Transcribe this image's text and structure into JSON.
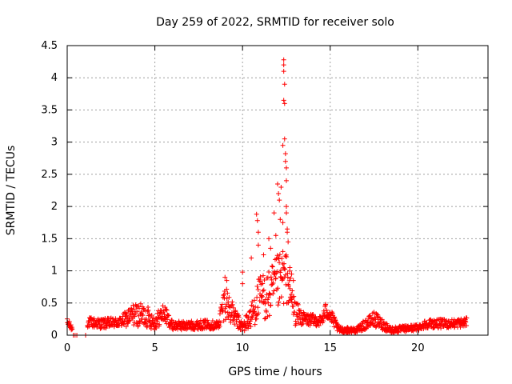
{
  "chart_data": {
    "type": "scatter",
    "title": "Day 259 of 2022, SRMTID for receiver solo",
    "xlabel": "GPS time / hours",
    "ylabel": "SRMTID / TECUs",
    "xlim": [
      0,
      24
    ],
    "ylim": [
      0,
      4.5
    ],
    "xticks": [
      0,
      5,
      10,
      15,
      20
    ],
    "yticks": [
      0,
      0.5,
      1,
      1.5,
      2,
      2.5,
      3,
      3.5,
      4,
      4.5
    ],
    "ytick_labels": [
      "0",
      "0.5",
      "1",
      "1.5",
      "2",
      "2.5",
      "3",
      "3.5",
      "4",
      "4.5"
    ],
    "grid": true,
    "marker": "+",
    "color": "#ff0000",
    "series": [
      {
        "name": "SRMTID",
        "envelope": [
          {
            "x": 0.0,
            "base": 0.2,
            "spread": 0.06
          },
          {
            "x": 0.3,
            "base": 0.1,
            "spread": 0.05
          },
          {
            "x": 1.2,
            "base": 0.2,
            "spread": 0.08
          },
          {
            "x": 2.0,
            "base": 0.18,
            "spread": 0.08
          },
          {
            "x": 3.0,
            "base": 0.2,
            "spread": 0.08
          },
          {
            "x": 3.8,
            "base": 0.32,
            "spread": 0.18
          },
          {
            "x": 4.5,
            "base": 0.3,
            "spread": 0.18
          },
          {
            "x": 5.0,
            "base": 0.2,
            "spread": 0.12
          },
          {
            "x": 5.5,
            "base": 0.35,
            "spread": 0.15
          },
          {
            "x": 6.0,
            "base": 0.15,
            "spread": 0.07
          },
          {
            "x": 7.0,
            "base": 0.15,
            "spread": 0.07
          },
          {
            "x": 8.0,
            "base": 0.17,
            "spread": 0.07
          },
          {
            "x": 8.6,
            "base": 0.15,
            "spread": 0.07
          },
          {
            "x": 9.0,
            "base": 0.55,
            "spread": 0.3
          },
          {
            "x": 9.5,
            "base": 0.3,
            "spread": 0.15
          },
          {
            "x": 10.0,
            "base": 0.12,
            "spread": 0.08
          },
          {
            "x": 10.5,
            "base": 0.3,
            "spread": 0.2
          },
          {
            "x": 11.0,
            "base": 0.6,
            "spread": 0.35
          },
          {
            "x": 11.5,
            "base": 0.6,
            "spread": 0.4
          },
          {
            "x": 12.0,
            "base": 0.8,
            "spread": 0.45
          },
          {
            "x": 12.5,
            "base": 0.9,
            "spread": 0.4
          },
          {
            "x": 13.0,
            "base": 0.35,
            "spread": 0.2
          },
          {
            "x": 13.5,
            "base": 0.25,
            "spread": 0.1
          },
          {
            "x": 14.5,
            "base": 0.22,
            "spread": 0.08
          },
          {
            "x": 14.8,
            "base": 0.4,
            "spread": 0.15
          },
          {
            "x": 15.5,
            "base": 0.08,
            "spread": 0.05
          },
          {
            "x": 16.5,
            "base": 0.08,
            "spread": 0.04
          },
          {
            "x": 17.5,
            "base": 0.25,
            "spread": 0.12
          },
          {
            "x": 18.5,
            "base": 0.08,
            "spread": 0.05
          },
          {
            "x": 20.0,
            "base": 0.12,
            "spread": 0.05
          },
          {
            "x": 20.5,
            "base": 0.18,
            "spread": 0.07
          },
          {
            "x": 22.0,
            "base": 0.18,
            "spread": 0.07
          },
          {
            "x": 22.8,
            "base": 0.2,
            "spread": 0.07
          }
        ],
        "highlights": [
          {
            "x": 0.35,
            "y": 0.0
          },
          {
            "x": 0.45,
            "y": 0.0
          },
          {
            "x": 0.55,
            "y": 0.0
          },
          {
            "x": 1.05,
            "y": 0.0
          },
          {
            "x": 9.0,
            "y": 0.9
          },
          {
            "x": 9.1,
            "y": 0.85
          },
          {
            "x": 10.0,
            "y": 0.98
          },
          {
            "x": 10.0,
            "y": 0.8
          },
          {
            "x": 10.5,
            "y": 1.2
          },
          {
            "x": 10.8,
            "y": 1.88
          },
          {
            "x": 10.85,
            "y": 1.78
          },
          {
            "x": 10.9,
            "y": 1.6
          },
          {
            "x": 10.9,
            "y": 1.4
          },
          {
            "x": 11.2,
            "y": 1.25
          },
          {
            "x": 11.5,
            "y": 1.5
          },
          {
            "x": 11.6,
            "y": 1.35
          },
          {
            "x": 11.8,
            "y": 1.9
          },
          {
            "x": 11.9,
            "y": 1.55
          },
          {
            "x": 12.0,
            "y": 2.35
          },
          {
            "x": 12.05,
            "y": 2.2
          },
          {
            "x": 12.1,
            "y": 2.1
          },
          {
            "x": 12.15,
            "y": 1.8
          },
          {
            "x": 12.2,
            "y": 2.3
          },
          {
            "x": 12.3,
            "y": 2.95
          },
          {
            "x": 12.35,
            "y": 4.28
          },
          {
            "x": 12.35,
            "y": 4.2
          },
          {
            "x": 12.35,
            "y": 4.1
          },
          {
            "x": 12.4,
            "y": 3.9
          },
          {
            "x": 12.35,
            "y": 3.65
          },
          {
            "x": 12.4,
            "y": 3.6
          },
          {
            "x": 12.4,
            "y": 3.05
          },
          {
            "x": 12.45,
            "y": 2.82
          },
          {
            "x": 12.45,
            "y": 2.7
          },
          {
            "x": 12.5,
            "y": 2.6
          },
          {
            "x": 12.5,
            "y": 2.4
          },
          {
            "x": 12.5,
            "y": 2.0
          },
          {
            "x": 12.5,
            "y": 1.9
          },
          {
            "x": 12.55,
            "y": 1.65
          },
          {
            "x": 12.55,
            "y": 1.6
          },
          {
            "x": 12.6,
            "y": 1.45
          },
          {
            "x": 12.3,
            "y": 1.3
          },
          {
            "x": 12.7,
            "y": 1.05
          },
          {
            "x": 12.8,
            "y": 0.95
          },
          {
            "x": 12.9,
            "y": 0.85
          },
          {
            "x": 12.3,
            "y": 1.75
          }
        ]
      }
    ]
  }
}
